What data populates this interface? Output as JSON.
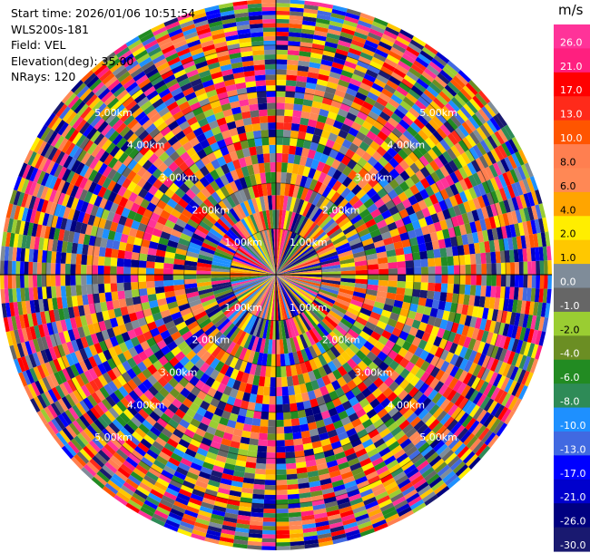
{
  "info": {
    "start_time": "Start time: 2026/01/06 10:51:54",
    "station": "WLS200s-181",
    "field": "Field: VEL",
    "elevation": "Elevation(deg): 35.00",
    "nrays": "NRays: 120"
  },
  "chart_data": {
    "type": "heatmap",
    "projection": "polar-ppi",
    "field": "VEL",
    "units": "m/s",
    "nrays": 120,
    "elevation_deg": 35.0,
    "max_range_km": 6.0,
    "range_ring_labels": [
      "1.00km",
      "2.00km",
      "3.00km",
      "4.00km",
      "5.00km"
    ],
    "colorbar": {
      "unit": "m/s",
      "ticks": [
        "26.0",
        "21.0",
        "17.0",
        "13.0",
        "10.0",
        "8.0",
        "6.0",
        "4.0",
        "2.0",
        "1.0",
        "0.0",
        "-1.0",
        "-2.0",
        "-4.0",
        "-6.0",
        "-8.0",
        "-10.0",
        "-13.0",
        "-17.0",
        "-21.0",
        "-26.0",
        "-30.0"
      ],
      "colors": [
        "#ff3399",
        "#ff1f7f",
        "#ff0000",
        "#ff2a1a",
        "#ff5500",
        "#ff7f50",
        "#ff8855",
        "#ffa500",
        "#ffee00",
        "#ffc800",
        "#7f8c99",
        "#666666",
        "#9acd32",
        "#6b8e23",
        "#228b22",
        "#2e8b57",
        "#1e90ff",
        "#4169e1",
        "#0000ff",
        "#0000cd",
        "#000080",
        "#191970"
      ]
    }
  }
}
